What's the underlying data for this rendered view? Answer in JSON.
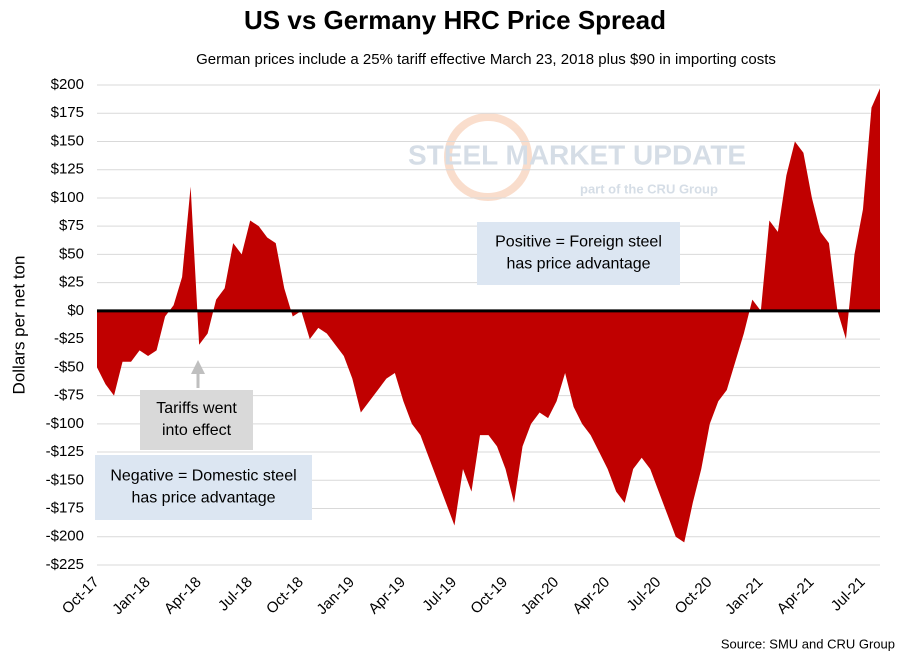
{
  "chart_data": {
    "type": "area",
    "title": "US vs Germany HRC Price Spread",
    "subtitle": "German prices include a 25% tariff effective March 23, 2018 plus $90 in importing costs",
    "y_label": "Dollars per net ton",
    "source": "Source: SMU and CRU Group",
    "watermark": [
      "STEEL MARKET UPDATE",
      "part of the CRU Group"
    ],
    "annotations": [
      {
        "lines": [
          "Positive = Foreign steel",
          "has price advantage"
        ]
      },
      {
        "lines": [
          "Negative = Domestic steel",
          "has price advantage"
        ]
      },
      {
        "lines": [
          "Tariffs went",
          "into effect"
        ]
      }
    ],
    "color": "#c00000",
    "grid": true,
    "categories": [
      "Oct-17",
      null,
      null,
      null,
      null,
      null,
      "Jan-18",
      null,
      null,
      null,
      null,
      null,
      "Apr-18",
      null,
      null,
      null,
      null,
      null,
      "Jul-18",
      null,
      null,
      null,
      null,
      null,
      "Oct-18",
      null,
      null,
      null,
      null,
      null,
      "Jan-19",
      null,
      null,
      null,
      null,
      null,
      "Apr-19",
      null,
      null,
      null,
      null,
      null,
      "Jul-19",
      null,
      null,
      null,
      null,
      null,
      "Oct-19",
      null,
      null,
      null,
      null,
      null,
      "Jan-20",
      null,
      null,
      null,
      null,
      null,
      "Apr-20",
      null,
      null,
      null,
      null,
      null,
      "Jul-20",
      null,
      null,
      null,
      null,
      null,
      "Oct-20",
      null,
      null,
      null,
      null,
      null,
      "Jan-21",
      null,
      null,
      null,
      null,
      null,
      "Apr-21",
      null,
      null,
      null,
      null,
      null,
      "Jul-21",
      null,
      null
    ],
    "values": [
      -50,
      -65,
      -75,
      -45,
      -45,
      -35,
      -40,
      -35,
      -5,
      5,
      30,
      110,
      -30,
      -20,
      10,
      20,
      60,
      50,
      80,
      75,
      65,
      60,
      20,
      -5,
      0,
      -25,
      -15,
      -20,
      -30,
      -40,
      -60,
      -90,
      -80,
      -70,
      -60,
      -55,
      -80,
      -100,
      -110,
      -130,
      -150,
      -170,
      -190,
      -140,
      -160,
      -110,
      -110,
      -120,
      -140,
      -170,
      -120,
      -100,
      -90,
      -95,
      -80,
      -55,
      -85,
      -100,
      -110,
      -125,
      -140,
      -160,
      -170,
      -140,
      -130,
      -140,
      -160,
      -180,
      -200,
      -205,
      -170,
      -140,
      -100,
      -80,
      -70,
      -45,
      -20,
      10,
      0,
      80,
      70,
      120,
      150,
      140,
      100,
      70,
      60,
      0,
      -25,
      50,
      90,
      180,
      197
    ],
    "ylim": [
      -225,
      200
    ],
    "yticks": [
      {
        "value": -225,
        "label": "-$225"
      },
      {
        "value": -200,
        "label": "-$200"
      },
      {
        "value": -175,
        "label": "-$175"
      },
      {
        "value": -150,
        "label": "-$150"
      },
      {
        "value": -125,
        "label": "-$125"
      },
      {
        "value": -100,
        "label": "-$100"
      },
      {
        "value": -75,
        "label": "-$75"
      },
      {
        "value": -50,
        "label": "-$50"
      },
      {
        "value": -25,
        "label": "-$25"
      },
      {
        "value": 0,
        "label": "$0"
      },
      {
        "value": 25,
        "label": "$25"
      },
      {
        "value": 50,
        "label": "$50"
      },
      {
        "value": 75,
        "label": "$75"
      },
      {
        "value": 100,
        "label": "$100"
      },
      {
        "value": 125,
        "label": "$125"
      },
      {
        "value": 150,
        "label": "$150"
      },
      {
        "value": 175,
        "label": "$175"
      },
      {
        "value": 200,
        "label": "$200"
      }
    ]
  }
}
